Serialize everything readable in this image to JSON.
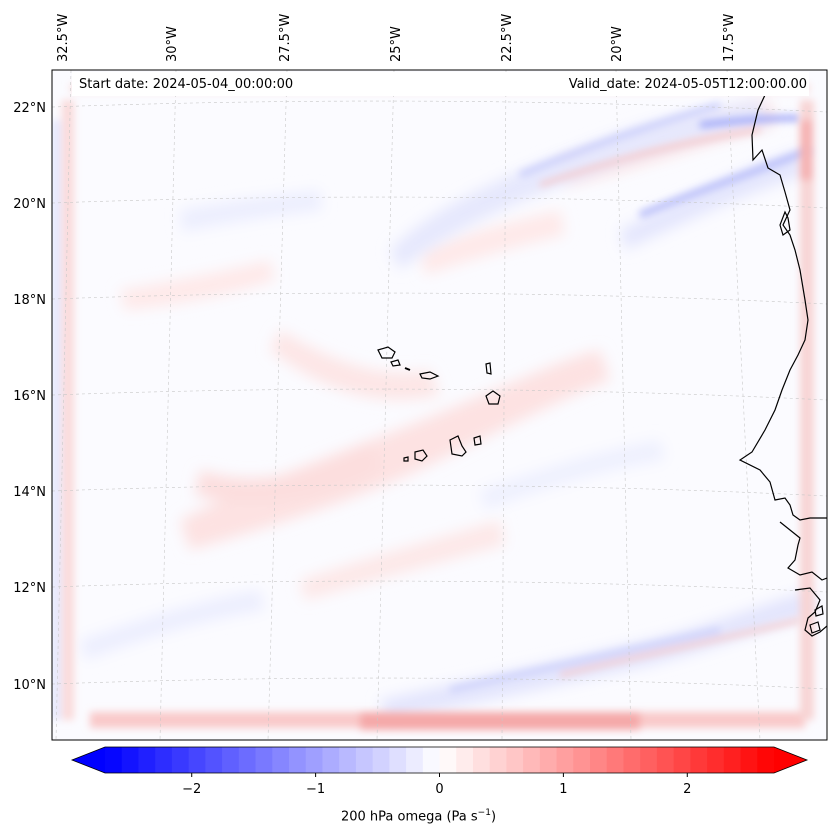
{
  "map": {
    "start_date_text": "Start date: 2024-05-04_00:00:00",
    "valid_date_text": "Valid_date: 2024-05-05T12:00:00.00",
    "lon_labels": [
      "32.5°W",
      "30°W",
      "27.5°W",
      "25°W",
      "22.5°W",
      "20°W",
      "17.5°W"
    ],
    "lat_labels": [
      "22°N",
      "20°N",
      "18°N",
      "16°N",
      "14°N",
      "12°N",
      "10°N"
    ],
    "field": "200 hPa omega"
  },
  "colorbar": {
    "ticks": [
      "−2",
      "−1",
      "0",
      "1",
      "2"
    ],
    "tick_values": [
      -2,
      -1,
      0,
      1,
      2
    ],
    "vmin": -2.7,
    "vmax": 2.7,
    "colormap": "bwr",
    "label_prefix": "200 hPa omega (Pa s",
    "label_exponent": "−1",
    "label_suffix": ")"
  },
  "colors": {
    "negative": "#0000ff",
    "positive": "#ff0000",
    "zero": "#ffffff",
    "coastline": "#000000",
    "gridline": "#c8c8c8"
  }
}
